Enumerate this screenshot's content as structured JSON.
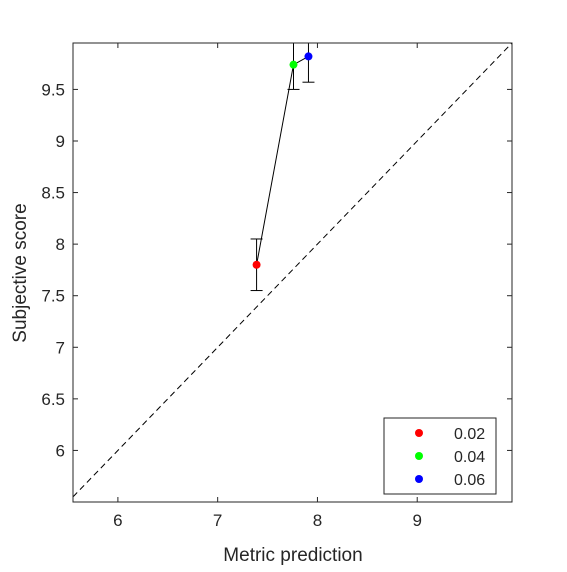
{
  "chart_data": {
    "type": "scatter",
    "title": "",
    "xlabel": "Metric prediction",
    "ylabel": "Subjective score",
    "xlim": [
      5.55,
      9.95
    ],
    "ylim": [
      5.5,
      9.95
    ],
    "x_ticks": [
      6,
      7,
      8,
      9
    ],
    "x_tick_labels": [
      "6",
      "7",
      "8",
      "9"
    ],
    "y_ticks": [
      6,
      6.5,
      7,
      7.5,
      8,
      8.5,
      9,
      9.5
    ],
    "y_tick_labels": [
      "6",
      "6.5",
      "7",
      "7.5",
      "8",
      "8.5",
      "9",
      "9.5"
    ],
    "grid": false,
    "legend_position": "bottom-right",
    "reference_line": {
      "style": "dashed",
      "color": "#000000",
      "from": [
        5.55,
        5.55
      ],
      "to": [
        9.95,
        9.95
      ]
    },
    "connecting_line": {
      "color": "#000000"
    },
    "points": [
      {
        "label": "0.02",
        "x": 7.39,
        "y": 7.8,
        "err_low": 7.55,
        "err_high": 8.05,
        "color": "#ff0000"
      },
      {
        "label": "0.04",
        "x": 7.76,
        "y": 9.74,
        "err_low": 9.5,
        "err_high": 9.97,
        "color": "#00ff00"
      },
      {
        "label": "0.06",
        "x": 7.91,
        "y": 9.82,
        "err_low": 9.57,
        "err_high": 10.07,
        "color": "#0000ff"
      }
    ]
  }
}
